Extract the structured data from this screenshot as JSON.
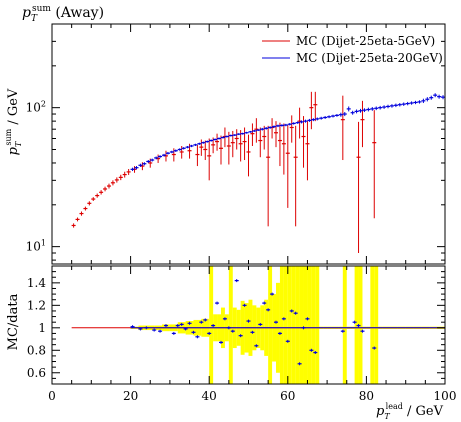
{
  "chart_data": {
    "type": "scatter",
    "title": "p_T^sum (Away)",
    "title_parts": {
      "var": "p",
      "sub": "T",
      "sup": "sum",
      "rest": " (Away)"
    },
    "ylabel": "p_T^sum / GeV",
    "ylabel_parts": {
      "var": "p",
      "sub": "T",
      "sup": "sum",
      "rest": " / GeV"
    },
    "xlabel": "p_T^lead / GeV",
    "xlabel_parts": {
      "var": "p",
      "sub": "T",
      "sup": "lead",
      "rest": " / GeV"
    },
    "ratio_ylabel": "MC/data",
    "xlim": [
      0,
      100
    ],
    "ylim": [
      7.5,
      400
    ],
    "ylog": true,
    "ratio_ylim": [
      0.5,
      1.55
    ],
    "x_ticks": [
      "0",
      "20",
      "40",
      "60",
      "80",
      "100"
    ],
    "y_ticks": [
      {
        "label": "10",
        "exp": "1",
        "value": 10
      },
      {
        "label": "10",
        "exp": "2",
        "value": 100
      }
    ],
    "ratio_ticks": [
      "0.6",
      "0.8",
      "1",
      "1.2",
      "1.4"
    ],
    "legend_position": "top-right",
    "band_color": "#ffff00",
    "series": [
      {
        "name": "MC (Dijet-25eta-5GeV)",
        "color": "#dd0000",
        "points": [
          [
            5.5,
            14.2,
            0.5
          ],
          [
            6.5,
            15.7,
            0.5
          ],
          [
            7.5,
            17.3,
            0.6
          ],
          [
            8.5,
            18.8,
            0.6
          ],
          [
            9.5,
            20.5,
            0.7
          ],
          [
            10.5,
            22,
            0.7
          ],
          [
            11.5,
            23.3,
            0.8
          ],
          [
            12.5,
            24.6,
            0.9
          ],
          [
            13.5,
            26,
            1.0
          ],
          [
            14.5,
            27.3,
            1.1
          ],
          [
            15.5,
            28.8,
            1.2
          ],
          [
            16.5,
            30.2,
            1.3
          ],
          [
            17.5,
            31.5,
            1.4
          ],
          [
            18.5,
            33,
            1.6
          ],
          [
            19.5,
            34.5,
            1.7
          ],
          [
            21,
            36,
            2
          ],
          [
            23,
            38,
            2.5
          ],
          [
            25,
            40,
            3
          ],
          [
            27,
            43,
            3
          ],
          [
            29,
            45,
            4
          ],
          [
            31,
            46,
            5
          ],
          [
            33,
            48,
            5
          ],
          [
            35,
            49,
            6
          ],
          [
            37,
            46,
            8
          ],
          [
            38,
            52,
            7
          ],
          [
            39,
            50,
            8
          ],
          [
            40,
            45,
            15
          ],
          [
            41,
            54,
            7
          ],
          [
            42,
            57,
            8
          ],
          [
            43,
            51,
            12
          ],
          [
            44,
            62,
            10
          ],
          [
            45,
            53,
            14
          ],
          [
            46,
            56,
            12
          ],
          [
            47,
            60,
            10
          ],
          [
            48,
            55,
            14
          ],
          [
            49,
            57,
            15
          ],
          [
            50,
            48,
            16
          ],
          [
            51,
            65,
            12
          ],
          [
            52,
            70,
            14
          ],
          [
            53,
            58,
            14
          ],
          [
            54,
            62,
            12
          ],
          [
            55,
            44,
            30
          ],
          [
            56,
            72,
            12
          ],
          [
            57,
            66,
            14
          ],
          [
            58,
            58,
            20
          ],
          [
            59,
            55,
            22
          ],
          [
            60,
            47,
            28
          ],
          [
            61,
            72,
            16
          ],
          [
            62,
            44,
            30
          ],
          [
            63,
            80,
            20
          ],
          [
            64,
            62,
            25
          ],
          [
            65,
            55,
            25
          ],
          [
            66,
            100,
            30
          ],
          [
            67,
            105,
            25
          ],
          [
            74,
            82,
            40
          ],
          [
            78,
            44,
            35
          ],
          [
            79,
            82,
            30
          ],
          [
            82,
            56,
            40
          ]
        ]
      },
      {
        "name": "MC (Dijet-25eta-20GeV)",
        "color": "#0000dd",
        "points": [
          [
            20.5,
            36,
            1
          ],
          [
            21.5,
            37,
            1
          ],
          [
            22.5,
            38.5,
            1
          ],
          [
            23.5,
            39.5,
            1
          ],
          [
            24.5,
            41,
            1
          ],
          [
            25.5,
            42,
            1
          ],
          [
            26.5,
            43.5,
            1
          ],
          [
            27.5,
            44.5,
            1
          ],
          [
            28.5,
            45.5,
            1
          ],
          [
            29.5,
            47,
            1
          ],
          [
            30.5,
            48,
            1
          ],
          [
            31.5,
            49,
            1
          ],
          [
            32.5,
            50,
            1
          ],
          [
            33.5,
            51,
            1
          ],
          [
            34.5,
            52,
            1
          ],
          [
            35.5,
            53,
            1
          ],
          [
            36.5,
            54,
            1
          ],
          [
            37.5,
            55,
            1
          ],
          [
            38.5,
            56,
            1
          ],
          [
            39.5,
            57,
            1
          ],
          [
            40.5,
            58,
            1
          ],
          [
            41.5,
            59,
            1
          ],
          [
            42.5,
            60,
            1
          ],
          [
            43.5,
            61,
            1
          ],
          [
            44.5,
            62,
            1
          ],
          [
            45.5,
            63,
            1
          ],
          [
            46.5,
            63.5,
            1
          ],
          [
            47.5,
            64.5,
            1
          ],
          [
            48.5,
            65,
            1
          ],
          [
            49.5,
            66,
            1
          ],
          [
            50.5,
            67,
            1
          ],
          [
            51.5,
            68,
            1
          ],
          [
            52.5,
            69,
            1
          ],
          [
            53.5,
            70,
            1.5
          ],
          [
            54.5,
            71,
            1.5
          ],
          [
            55.5,
            72,
            1.5
          ],
          [
            56.5,
            73,
            1.5
          ],
          [
            57.5,
            74,
            1.5
          ],
          [
            58.5,
            74.5,
            1.5
          ],
          [
            59.5,
            75,
            1.5
          ],
          [
            60.5,
            76,
            1.5
          ],
          [
            61.5,
            77,
            1.5
          ],
          [
            62.5,
            78,
            1.5
          ],
          [
            63.5,
            79,
            2
          ],
          [
            64.5,
            80,
            2
          ],
          [
            65.5,
            81,
            2
          ],
          [
            66.5,
            82,
            2
          ],
          [
            67.5,
            83,
            2
          ],
          [
            68.5,
            84,
            2
          ],
          [
            69.5,
            85,
            2
          ],
          [
            70.5,
            86,
            2
          ],
          [
            71.5,
            87,
            2
          ],
          [
            72.5,
            88,
            2
          ],
          [
            73.5,
            89,
            3
          ],
          [
            74.5,
            90,
            3
          ],
          [
            75.5,
            98,
            4
          ],
          [
            76.5,
            92,
            3
          ],
          [
            77.5,
            94,
            3
          ],
          [
            78.5,
            95,
            3
          ],
          [
            79.5,
            96,
            3
          ],
          [
            80.5,
            97,
            3
          ],
          [
            81.5,
            98,
            3
          ],
          [
            82.5,
            99,
            3
          ],
          [
            83.5,
            100,
            3
          ],
          [
            84.5,
            101,
            3
          ],
          [
            85.5,
            102,
            3
          ],
          [
            86.5,
            103,
            3
          ],
          [
            87.5,
            104,
            3
          ],
          [
            88.5,
            105,
            3
          ],
          [
            89.5,
            106,
            3
          ],
          [
            90.5,
            107,
            3
          ],
          [
            91.5,
            108,
            3
          ],
          [
            92.5,
            109,
            3
          ],
          [
            93.5,
            110,
            3
          ],
          [
            94.5,
            112,
            4
          ],
          [
            95.5,
            115,
            4
          ],
          [
            96.5,
            118,
            4
          ],
          [
            97.5,
            123,
            4
          ],
          [
            98.5,
            120,
            4
          ],
          [
            99.5,
            119,
            4
          ]
        ]
      }
    ],
    "ratio": {
      "band": [
        [
          20,
          0.01
        ],
        [
          22,
          0.02
        ],
        [
          24,
          0.02
        ],
        [
          26,
          0.02
        ],
        [
          28,
          0.03
        ],
        [
          30,
          0.03
        ],
        [
          32,
          0.05
        ],
        [
          34,
          0.06
        ],
        [
          36,
          0.07
        ],
        [
          38,
          0.08
        ],
        [
          40,
          0.55
        ],
        [
          41,
          0.12
        ],
        [
          42,
          0.12
        ],
        [
          43,
          0.18
        ],
        [
          44,
          0.12
        ],
        [
          45,
          0.55
        ],
        [
          46,
          0.18
        ],
        [
          47,
          0.16
        ],
        [
          48,
          0.24
        ],
        [
          49,
          0.22
        ],
        [
          50,
          0.25
        ],
        [
          51,
          0.2
        ],
        [
          52,
          0.18
        ],
        [
          53,
          0.2
        ],
        [
          54,
          0.25
        ],
        [
          55,
          0.55
        ],
        [
          56,
          0.3
        ],
        [
          57,
          0.4
        ],
        [
          58,
          0.55
        ],
        [
          59,
          0.55
        ],
        [
          60,
          0.55
        ],
        [
          61,
          0.55
        ],
        [
          62,
          0.55
        ],
        [
          63,
          0.55
        ],
        [
          64,
          0.55
        ],
        [
          65,
          0.55
        ],
        [
          66,
          0.55
        ],
        [
          67,
          0.55
        ],
        [
          68,
          0.01
        ],
        [
          69,
          0.01
        ],
        [
          70,
          0.01
        ],
        [
          71,
          0.01
        ],
        [
          72,
          0.01
        ],
        [
          73,
          0.01
        ],
        [
          74,
          0.55
        ],
        [
          75,
          0.01
        ],
        [
          76,
          0.01
        ],
        [
          77,
          0.55
        ],
        [
          78,
          0.55
        ],
        [
          79,
          0.01
        ],
        [
          80,
          0.01
        ],
        [
          81,
          0.55
        ],
        [
          82,
          0.55
        ],
        [
          83,
          0.01
        ],
        [
          84,
          0.01
        ],
        [
          86,
          0.01
        ],
        [
          88,
          0.01
        ],
        [
          90,
          0.01
        ],
        [
          92,
          0.01
        ],
        [
          94,
          0.01
        ],
        [
          96,
          0.01
        ],
        [
          98,
          0.01
        ],
        [
          100,
          0.01
        ]
      ],
      "red_points": [
        [
          5,
          1.0
        ],
        [
          10,
          1.0
        ],
        [
          15,
          1.0
        ],
        [
          20,
          1.0
        ],
        [
          25,
          1.0
        ],
        [
          30,
          1.0
        ]
      ],
      "blue_points": [
        [
          20.5,
          1.01
        ],
        [
          22.5,
          0.99
        ],
        [
          24,
          1.0
        ],
        [
          26,
          0.98
        ],
        [
          27.5,
          0.97
        ],
        [
          29,
          1.02
        ],
        [
          31,
          0.95
        ],
        [
          32,
          1.02
        ],
        [
          33,
          1.03
        ],
        [
          34,
          0.99
        ],
        [
          35,
          1.04
        ],
        [
          36,
          0.96
        ],
        [
          37,
          0.92
        ],
        [
          38,
          1.05
        ],
        [
          39,
          1.07
        ],
        [
          40,
          0.95
        ],
        [
          41,
          1.02
        ],
        [
          42,
          1.22
        ],
        [
          43,
          0.87
        ],
        [
          44,
          1.08
        ],
        [
          45,
          1.0
        ],
        [
          46,
          0.97
        ],
        [
          47,
          1.42
        ],
        [
          48,
          0.93
        ],
        [
          49,
          1.2
        ],
        [
          50,
          1.06
        ],
        [
          51,
          0.96
        ],
        [
          52,
          0.84
        ],
        [
          53,
          1.03
        ],
        [
          54,
          1.22
        ],
        [
          55,
          1.16
        ],
        [
          56,
          1.3
        ],
        [
          57,
          1.05
        ],
        [
          58,
          0.95
        ],
        [
          59,
          1.08
        ],
        [
          60,
          0.88
        ],
        [
          61,
          1.15
        ],
        [
          62,
          1.13
        ],
        [
          63,
          0.68
        ],
        [
          64,
          1.0
        ],
        [
          65,
          1.08
        ],
        [
          66,
          0.8
        ],
        [
          67,
          0.78
        ],
        [
          74,
          0.97
        ],
        [
          77,
          1.05
        ],
        [
          78,
          1.02
        ],
        [
          79,
          0.97
        ],
        [
          82,
          0.82
        ]
      ]
    }
  }
}
